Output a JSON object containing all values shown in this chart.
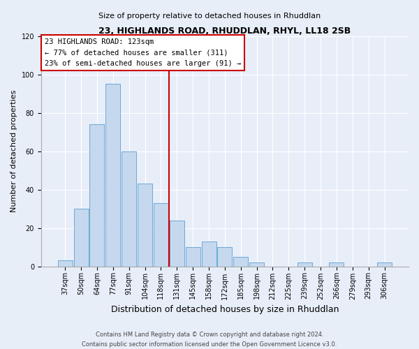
{
  "title": "23, HIGHLANDS ROAD, RHUDDLAN, RHYL, LL18 2SB",
  "subtitle": "Size of property relative to detached houses in Rhuddlan",
  "xlabel": "Distribution of detached houses by size in Rhuddlan",
  "ylabel": "Number of detached properties",
  "bar_labels": [
    "37sqm",
    "50sqm",
    "64sqm",
    "77sqm",
    "91sqm",
    "104sqm",
    "118sqm",
    "131sqm",
    "145sqm",
    "158sqm",
    "172sqm",
    "185sqm",
    "198sqm",
    "212sqm",
    "225sqm",
    "239sqm",
    "252sqm",
    "266sqm",
    "279sqm",
    "293sqm",
    "306sqm"
  ],
  "bar_values": [
    3,
    30,
    74,
    95,
    60,
    43,
    33,
    24,
    10,
    13,
    10,
    5,
    2,
    0,
    0,
    2,
    0,
    2,
    0,
    0,
    2
  ],
  "bar_color": "#c5d8ee",
  "bar_edge_color": "#5a9fd4",
  "vline_x_index": 7,
  "vline_color": "#cc0000",
  "ylim": [
    0,
    120
  ],
  "yticks": [
    0,
    20,
    40,
    60,
    80,
    100,
    120
  ],
  "annotation_title": "23 HIGHLANDS ROAD: 123sqm",
  "annotation_line1": "← 77% of detached houses are smaller (311)",
  "annotation_line2": "23% of semi-detached houses are larger (91) →",
  "annotation_box_facecolor": "#ffffff",
  "annotation_box_edgecolor": "#cc0000",
  "footer_line1": "Contains HM Land Registry data © Crown copyright and database right 2024.",
  "footer_line2": "Contains public sector information licensed under the Open Government Licence v3.0.",
  "background_color": "#e8eef8",
  "plot_bg_color": "#e8eef8",
  "grid_color": "#ffffff",
  "title_fontsize": 9,
  "subtitle_fontsize": 8,
  "xlabel_fontsize": 9,
  "ylabel_fontsize": 8,
  "tick_fontsize": 7,
  "annotation_fontsize": 7.5,
  "footer_fontsize": 6
}
